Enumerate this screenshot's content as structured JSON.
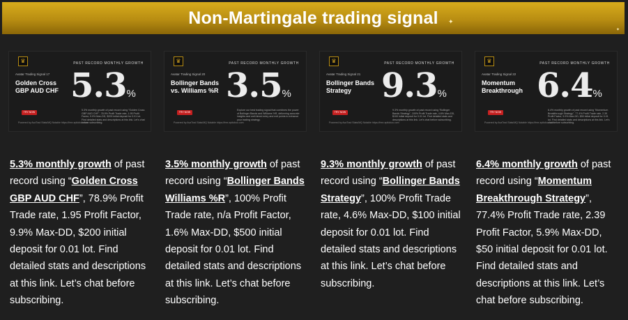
{
  "header": {
    "title": "Non-Martingale trading signal"
  },
  "cards": [
    {
      "past_record_label": "PAST RECORD MONTHLY GROWTH",
      "signal_name": "Avatar Trading Signal 17",
      "strategy_label": "Golden Cross GBP AUD CHF",
      "value": "5.3",
      "percent_sign": "%",
      "button_label": "TRY NOW",
      "mini_description": "5.3% monthly growth of past record using \"Golden Cross GBP AUD CHF\", 78.9% Profit Trade rate, 1.95 Profit Factor, 9.9% Max-DD, $200 initial deposit for 0.01 lot. Find detailed stats and descriptions at this link. Let's chat before subscribing.",
      "mini_footer": "Powered by AvaTrad Stats/MQ Notable https://free-epitoboo.com",
      "growth_text": "5.3% monthly growth",
      "text_a": " of past record using “",
      "strategy_link": "Golden Cross GBP AUD CHF",
      "text_b": "”, 78.9% Profit Trade rate, 1.95 Profit Factor, 9.9% Max-DD, $200 initial deposit for 0.01 lot. Find detailed stats and descriptions at this link. Let’s chat before subscribing."
    },
    {
      "past_record_label": "PAST RECORD MONTHLY GROWTH",
      "signal_name": "Avatar Trading Signal 20",
      "strategy_label": "Bollinger Bands vs. Williams %R",
      "value": "3.5",
      "percent_sign": "%",
      "button_label": "TRY NOW",
      "mini_description": "Explore our best trading signal that combines the power of Bollinger Bands and Williams %R, delivering accurate insights and well-timed entry and exit points to enhance your trading strategy.",
      "mini_footer": "Powered by AvaTrad Stats/MQ Notable https://free-epitoboo.com",
      "growth_text": "3.5% monthly growth",
      "text_a": " of past record using “",
      "strategy_link": "Bollinger Bands Williams %R",
      "text_b": "”, 100% Profit Trade rate, n/a Profit Factor, 1.6% Max-DD, $500 initial deposit for 0.01 lot. Find detailed stats and descriptions at this link. Let’s chat before subscribing."
    },
    {
      "past_record_label": "PAST RECORD MONTHLY GROWTH",
      "signal_name": "Avatar Trading Signal 21",
      "strategy_label": "Bollinger Bands Strategy",
      "value": "9.3",
      "percent_sign": "%",
      "button_label": "TRY NOW",
      "mini_description": "9.3% monthly growth of past record using \"Bollinger Bands Strategy\", 100% Profit Trade rate, 4.6% Max-DD, $100 initial deposit for 0.01 lot. Find detailed stats and descriptions at this link. Let's chat before subscribing.",
      "mini_footer": "Powered by AvaTrad Stats/MQ Notable https://free-epitoboo.com",
      "growth_text": "9.3% monthly growth",
      "text_a": " of past record using “",
      "strategy_link": "Bollinger Bands Strategy",
      "text_b": "”, 100% Profit Trade rate, 4.6% Max-DD, $100 initial deposit for 0.01 lot. Find detailed stats and descriptions at this link. Let’s chat before subscribing."
    },
    {
      "past_record_label": "PAST RECORD MONTHLY GROWTH",
      "signal_name": "Avatar Trading Signal 22",
      "strategy_label": "Momentum Breakthrough",
      "value": "6.4",
      "percent_sign": "%",
      "button_label": "TRY NOW",
      "mini_description": "6.4% monthly growth of past record using \"Momentum Breakthrough Strategy\", 77.4% Profit Trade rate, 2.39 Profit Factor, 5.9% Max-DD, $50 initial deposit for 0.01 lot. Find detailed stats and descriptions at this link. Let's chat before subscribing.",
      "mini_footer": "Powered by AvaTrad Stats/MQ Notable https://free-epitoboo.com",
      "growth_text": "6.4% monthly growth",
      "text_a": " of past record using “",
      "strategy_link": "Momentum Breakthrough Strategy",
      "text_b": "”, 77.4% Profit Trade rate, 2.39 Profit Factor, 5.9% Max-DD, $50 initial deposit for 0.01 lot. Find detailed stats and descriptions at this link. Let’s chat before subscribing."
    }
  ],
  "colors": {
    "background": "#1f1f1f",
    "banner_gold": "#c99e18",
    "button_red": "#c72020",
    "text": "#ffffff"
  },
  "icons": {
    "logo": "avatar-crest-icon",
    "sparkle": "sparkle-icon"
  }
}
